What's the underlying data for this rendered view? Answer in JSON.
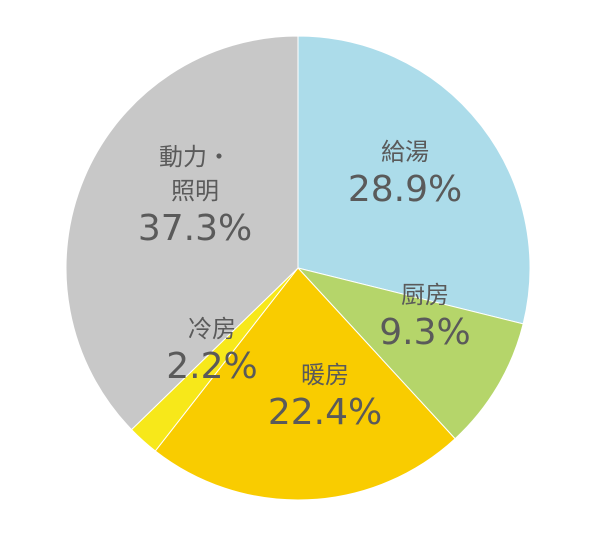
{
  "chart_data": {
    "type": "pie",
    "categories": [
      "給湯",
      "厨房",
      "暖房",
      "冷房",
      "動力・照明"
    ],
    "values": [
      28.9,
      9.3,
      22.4,
      2.2,
      37.3
    ],
    "value_labels": [
      "28.9%",
      "9.3%",
      "22.4%",
      "2.2%",
      "37.3%"
    ],
    "colors": [
      "#acdcea",
      "#b5d56a",
      "#f9cc00",
      "#f7e81a",
      "#c8c8c8"
    ]
  }
}
